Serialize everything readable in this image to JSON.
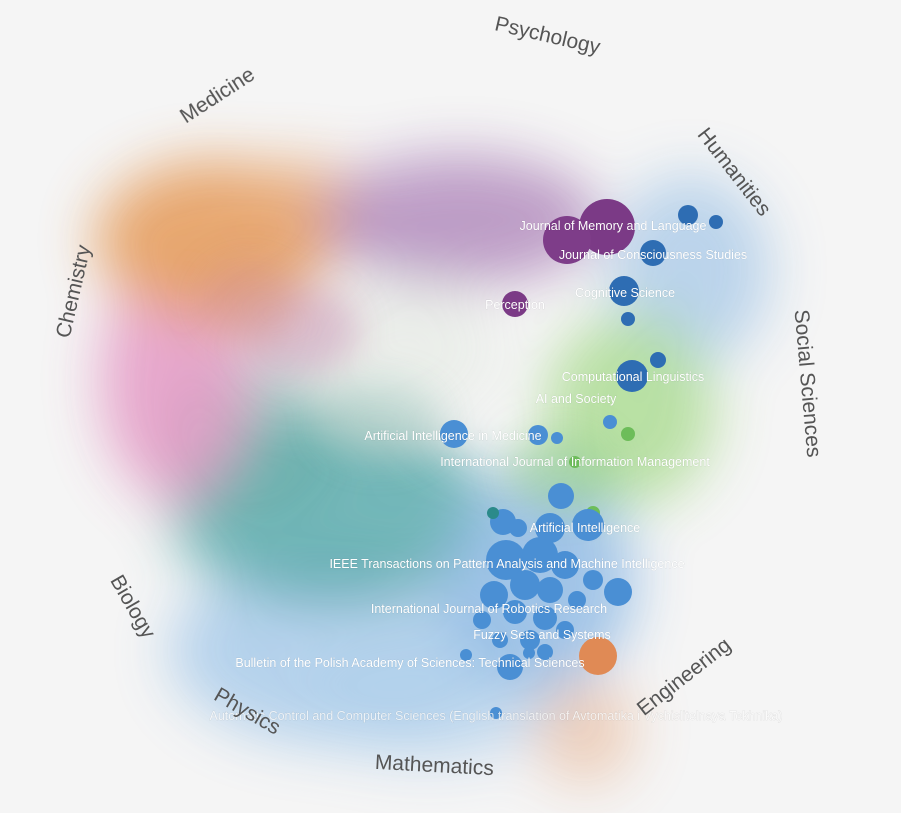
{
  "colors": {
    "background": "#f5f5f5",
    "field_label": "#555555",
    "journal_label": "#ffffff",
    "engineering_node": "#4a8fd4",
    "psychology_node": "#7b3a86",
    "social_node": "#2e6db3",
    "social_sciences_node": "#6dbd5a",
    "medicine_node": "#e08a55",
    "biology_node": "#2b8a8a"
  },
  "fields": [
    {
      "name": "Psychology"
    },
    {
      "name": "Medicine"
    },
    {
      "name": "Humanities"
    },
    {
      "name": "Chemistry"
    },
    {
      "name": "Social Sciences"
    },
    {
      "name": "Biology"
    },
    {
      "name": "Engineering"
    },
    {
      "name": "Physics"
    },
    {
      "name": "Mathematics"
    }
  ],
  "journals": [
    {
      "name": "Journal of Memory and Language"
    },
    {
      "name": "Journal of Consciousness Studies"
    },
    {
      "name": "Cognitive Science"
    },
    {
      "name": "Perception"
    },
    {
      "name": "Computational Linguistics"
    },
    {
      "name": "AI and Society"
    },
    {
      "name": "Artificial Intelligence in Medicine"
    },
    {
      "name": "International Journal of Information Management"
    },
    {
      "name": "Artificial Intelligence"
    },
    {
      "name": "IEEE Transactions on Pattern Analysis and Machine Intelligence"
    },
    {
      "name": "International Journal of Robotics Research"
    },
    {
      "name": "Fuzzy Sets and Systems"
    },
    {
      "name": "Bulletin of the Polish Academy of Sciences: Technical Sciences"
    },
    {
      "name": "Automatic Control and Computer Sciences (English translation of Avtomatika i Vychislitelnaya Tekhnika)"
    }
  ]
}
